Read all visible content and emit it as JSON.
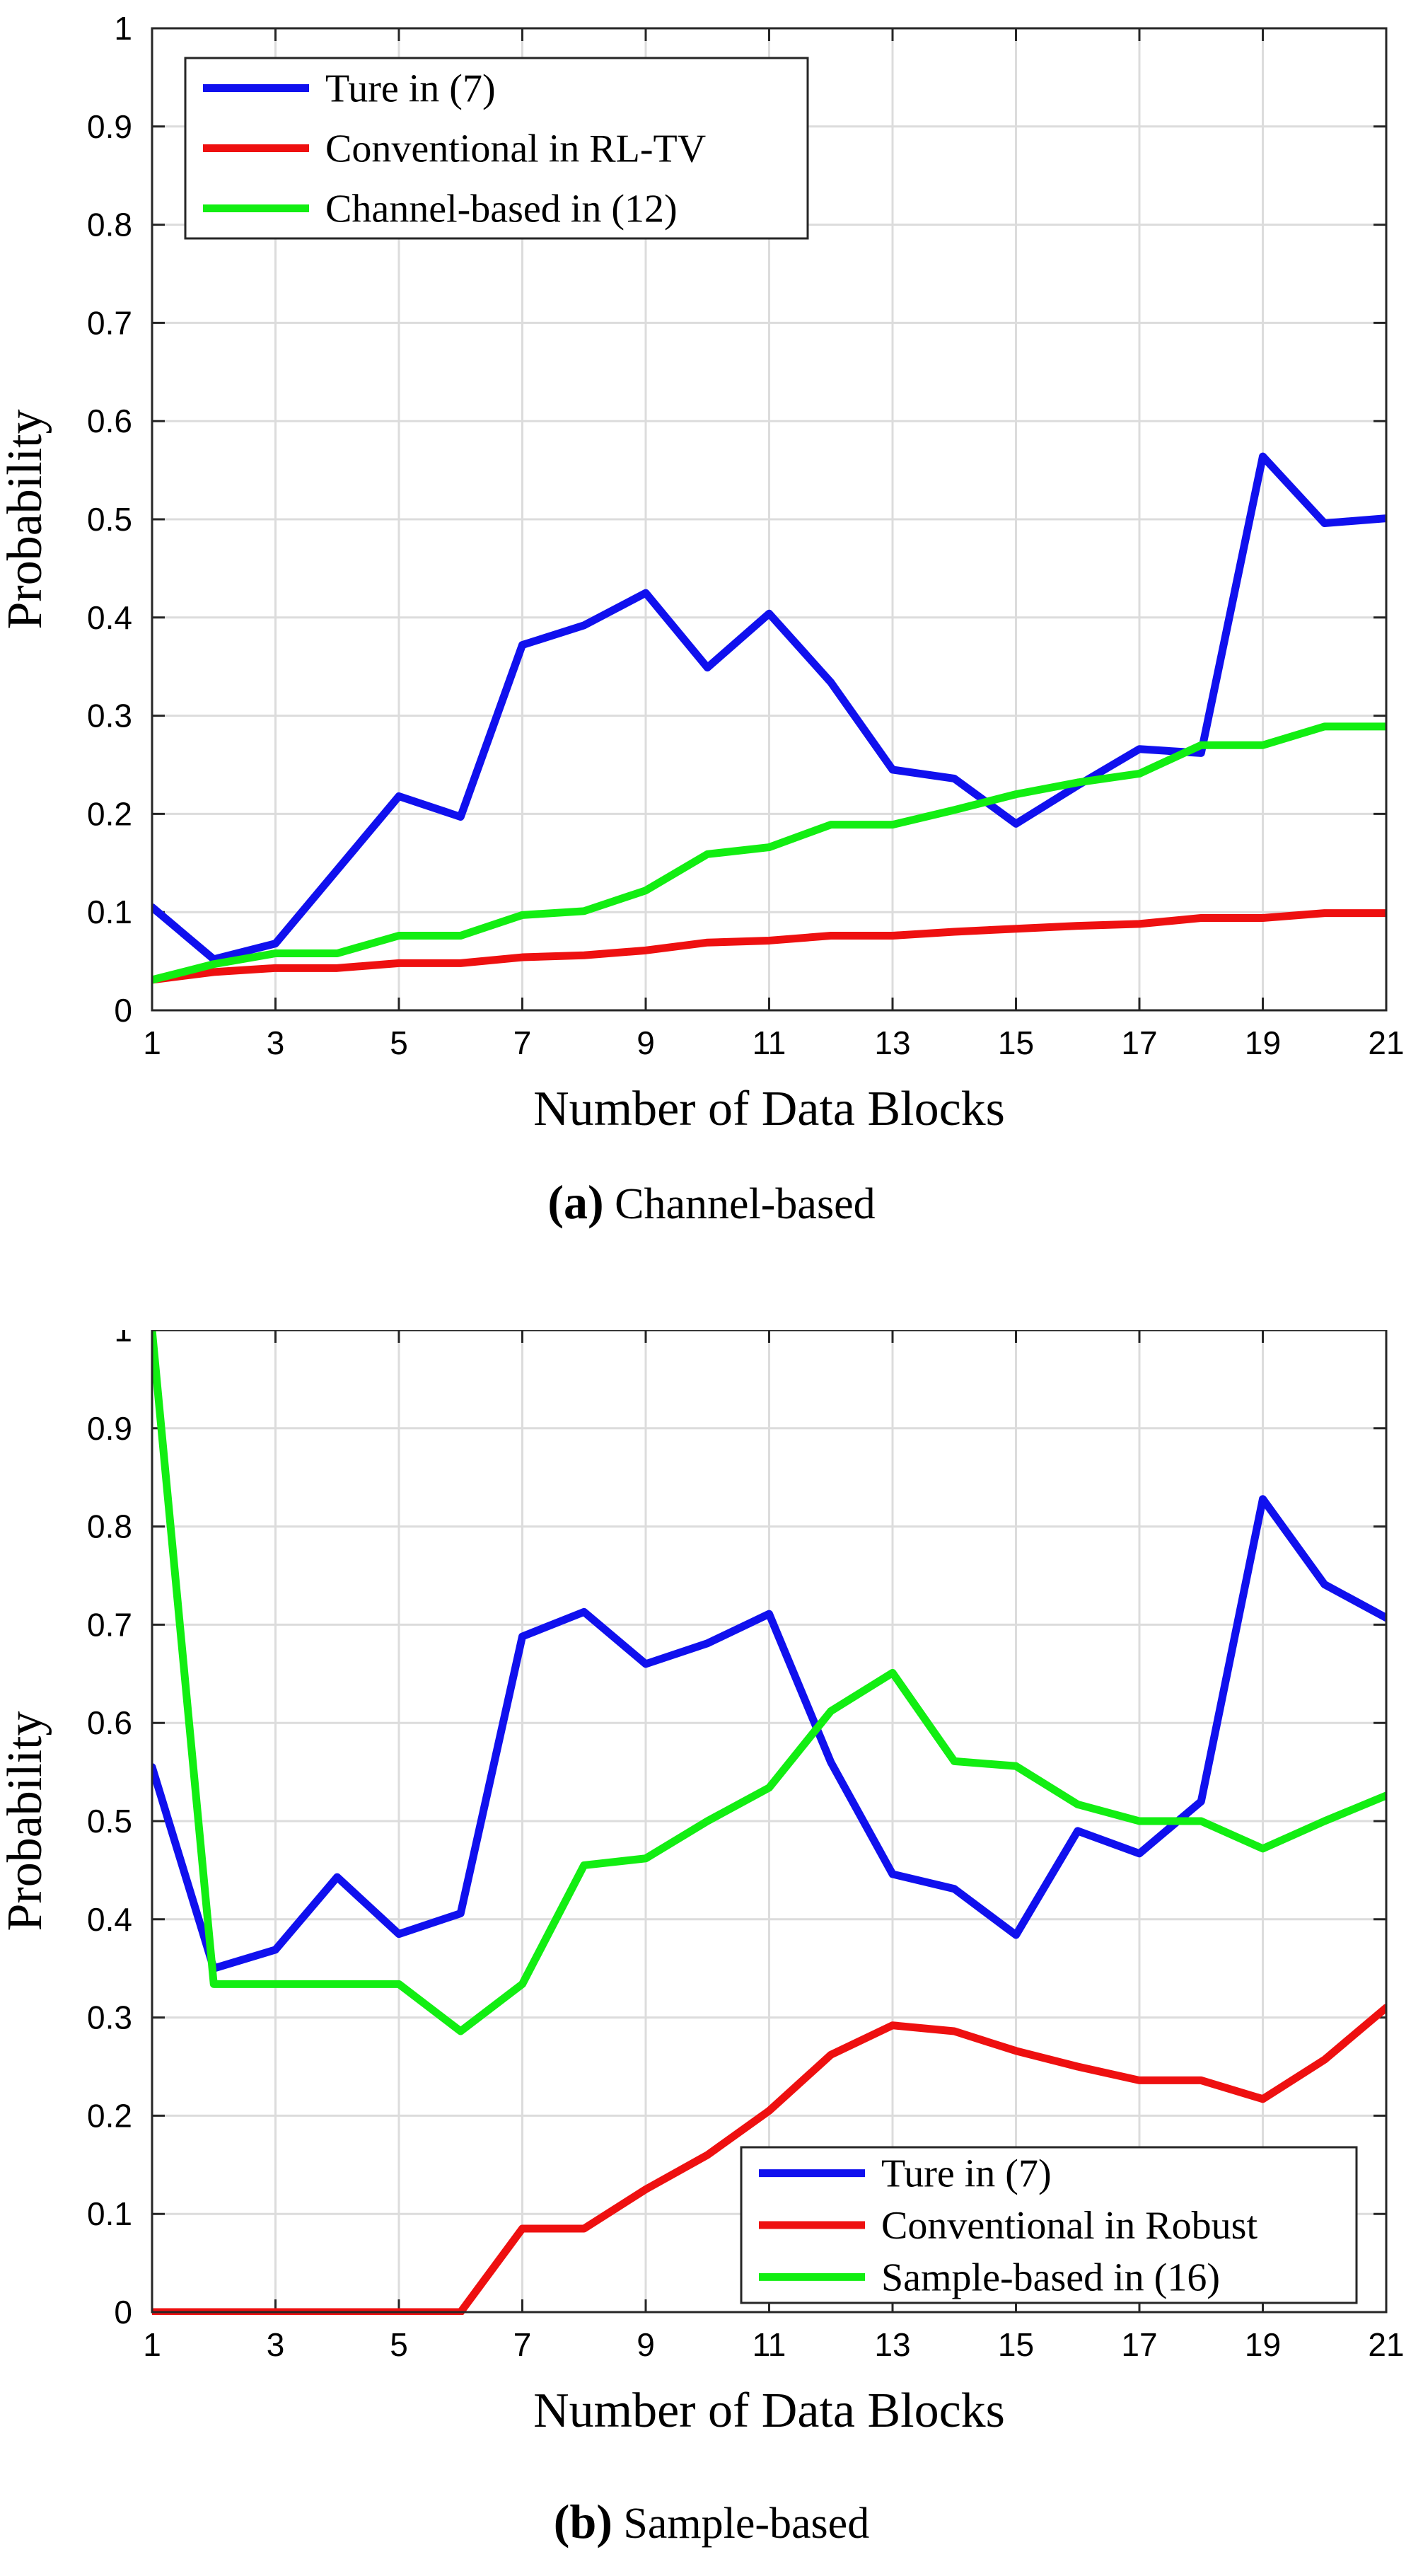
{
  "chart_data": [
    {
      "type": "line",
      "panel_id": "a",
      "caption_letter": "(a)",
      "caption_text": "Channel-based",
      "xlabel": "Number of Data Blocks",
      "ylabel": "Probability",
      "xlim": [
        1,
        21
      ],
      "ylim": [
        0,
        1
      ],
      "xticks": [
        "1",
        "3",
        "5",
        "7",
        "9",
        "11",
        "13",
        "15",
        "17",
        "19",
        "21"
      ],
      "yticks": [
        "0",
        "0.1",
        "0.2",
        "0.3",
        "0.4",
        "0.5",
        "0.6",
        "0.7",
        "0.8",
        "0.9",
        "1"
      ],
      "grid": true,
      "legend_position": "top-left",
      "x": [
        1,
        2,
        3,
        4,
        5,
        6,
        7,
        8,
        9,
        10,
        11,
        12,
        13,
        14,
        15,
        16,
        17,
        18,
        19,
        20,
        21
      ],
      "series": [
        {
          "name": "Ture in (7)",
          "color": "#1010ee",
          "values": [
            0.105,
            0.052,
            0.068,
            0.143,
            0.218,
            0.197,
            0.372,
            0.392,
            0.425,
            0.349,
            0.404,
            0.334,
            0.245,
            0.236,
            0.19,
            0.229,
            0.266,
            0.262,
            0.564,
            0.496,
            0.501
          ]
        },
        {
          "name": "Conventional in RL-TV",
          "color": "#ee1010",
          "values": [
            0.031,
            0.039,
            0.043,
            0.043,
            0.048,
            0.048,
            0.054,
            0.056,
            0.061,
            0.069,
            0.071,
            0.076,
            0.076,
            0.08,
            0.083,
            0.086,
            0.088,
            0.094,
            0.094,
            0.099,
            0.099
          ]
        },
        {
          "name": "Channel-based in (12)",
          "color": "#12ee12",
          "values": [
            0.031,
            0.047,
            0.058,
            0.058,
            0.076,
            0.076,
            0.097,
            0.101,
            0.122,
            0.159,
            0.166,
            0.189,
            0.189,
            0.204,
            0.22,
            0.232,
            0.241,
            0.27,
            0.27,
            0.289,
            0.289
          ]
        }
      ]
    },
    {
      "type": "line",
      "panel_id": "b",
      "caption_letter": "(b)",
      "caption_text": "Sample-based",
      "xlabel": "Number of Data Blocks",
      "ylabel": "Probability",
      "xlim": [
        1,
        21
      ],
      "ylim": [
        0,
        1
      ],
      "xticks": [
        "1",
        "3",
        "5",
        "7",
        "9",
        "11",
        "13",
        "15",
        "17",
        "19",
        "21"
      ],
      "yticks": [
        "0",
        "0.1",
        "0.2",
        "0.3",
        "0.4",
        "0.5",
        "0.6",
        "0.7",
        "0.8",
        "0.9",
        "1"
      ],
      "grid": true,
      "legend_position": "bottom-right",
      "x": [
        1,
        2,
        3,
        4,
        5,
        6,
        7,
        8,
        9,
        10,
        11,
        12,
        13,
        14,
        15,
        16,
        17,
        18,
        19,
        20,
        21
      ],
      "series": [
        {
          "name": "Ture in (7)",
          "color": "#1010ee",
          "values": [
            0.555,
            0.35,
            0.369,
            0.443,
            0.385,
            0.406,
            0.688,
            0.713,
            0.66,
            0.681,
            0.711,
            0.56,
            0.446,
            0.431,
            0.384,
            0.49,
            0.467,
            0.52,
            0.828,
            0.741,
            0.707
          ]
        },
        {
          "name": "Conventional in Robust",
          "color": "#ee1010",
          "values": [
            0.0,
            0.0,
            0.0,
            0.0,
            0.0,
            0.0,
            0.085,
            0.085,
            0.125,
            0.16,
            0.205,
            0.262,
            0.292,
            0.286,
            0.266,
            0.25,
            0.236,
            0.236,
            0.217,
            0.257,
            0.31
          ]
        },
        {
          "name": "Sample-based in (16)",
          "color": "#12ee12",
          "values": [
            1.0,
            0.334,
            0.334,
            0.334,
            0.334,
            0.286,
            0.334,
            0.455,
            0.462,
            0.5,
            0.534,
            0.612,
            0.651,
            0.561,
            0.556,
            0.517,
            0.5,
            0.5,
            0.472,
            0.5,
            0.526
          ]
        }
      ]
    }
  ]
}
